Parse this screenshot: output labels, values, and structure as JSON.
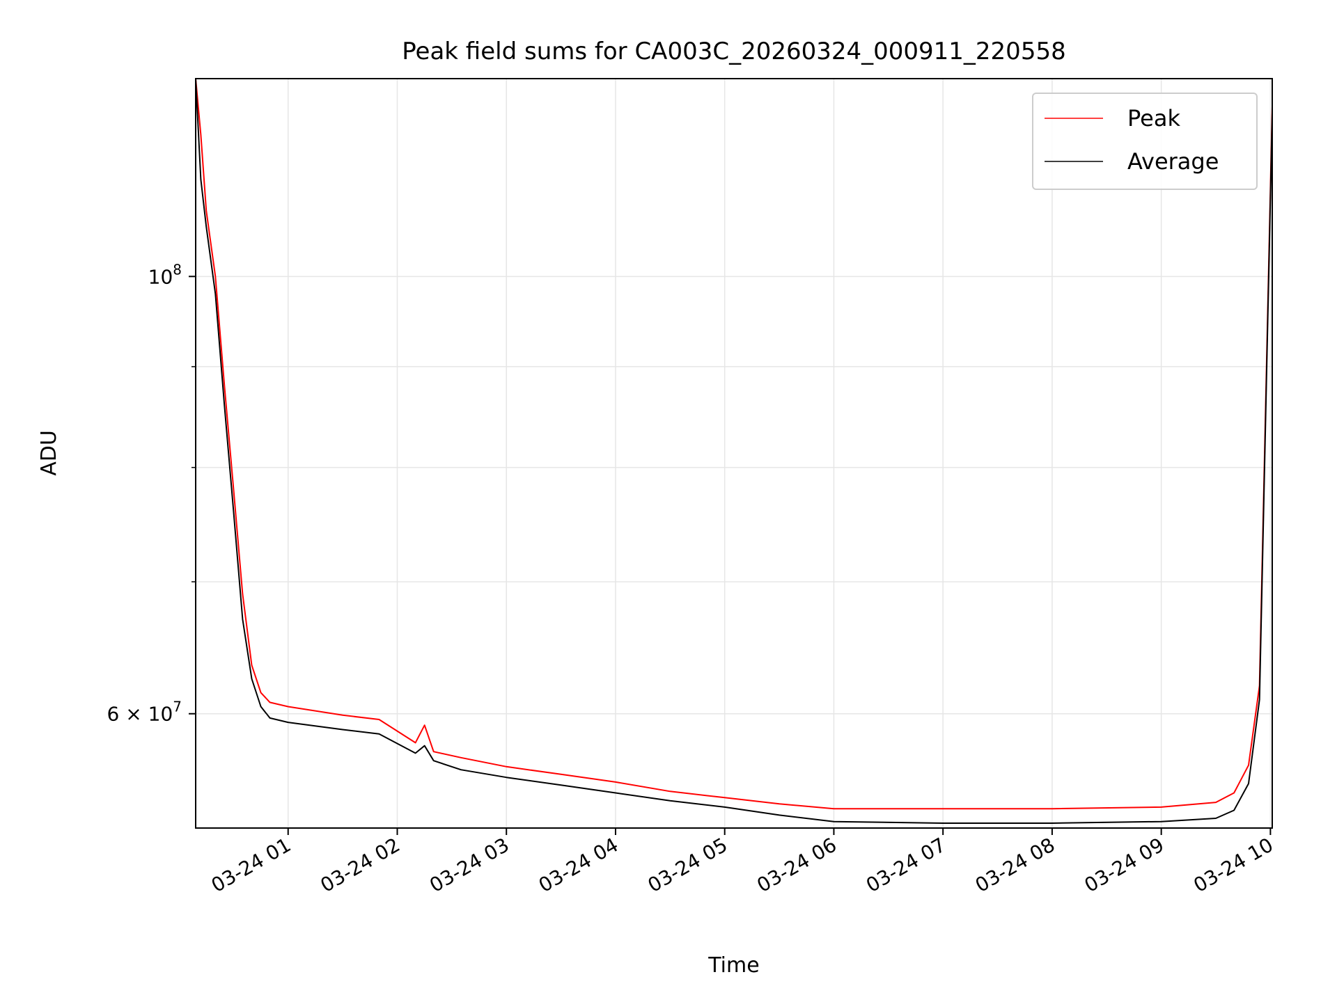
{
  "chart_data": {
    "type": "line",
    "title": "Peak field sums for CA003C_20260324_000911_220558",
    "xlabel": "Time",
    "ylabel": "ADU",
    "yscale": "log",
    "ylim": [
      52500000,
      126000000
    ],
    "xlim": [
      "2026-03-24 00:09:11",
      "2026-03-24 10:01:00"
    ],
    "grid": true,
    "legend_position": "top-right",
    "x_ticks": [
      {
        "t": "2026-03-24 01:00:00",
        "label": "03-24 01"
      },
      {
        "t": "2026-03-24 02:00:00",
        "label": "03-24 02"
      },
      {
        "t": "2026-03-24 03:00:00",
        "label": "03-24 03"
      },
      {
        "t": "2026-03-24 04:00:00",
        "label": "03-24 04"
      },
      {
        "t": "2026-03-24 05:00:00",
        "label": "03-24 05"
      },
      {
        "t": "2026-03-24 06:00:00",
        "label": "03-24 06"
      },
      {
        "t": "2026-03-24 07:00:00",
        "label": "03-24 07"
      },
      {
        "t": "2026-03-24 08:00:00",
        "label": "03-24 08"
      },
      {
        "t": "2026-03-24 09:00:00",
        "label": "03-24 09"
      },
      {
        "t": "2026-03-24 10:00:00",
        "label": "03-24 10"
      }
    ],
    "y_major_ticks": [
      {
        "value": 100000000,
        "base": "10",
        "exp": "8"
      },
      {
        "value": 60000000,
        "mant": "6",
        "base": "10",
        "exp": "7"
      }
    ],
    "y_minor_ticks": [
      70000000,
      80000000,
      90000000
    ],
    "series": [
      {
        "name": "Peak",
        "color": "#ff0000",
        "x": [
          "2026-03-24 00:09:11",
          "2026-03-24 00:12:00",
          "2026-03-24 00:15:00",
          "2026-03-24 00:20:00",
          "2026-03-24 00:25:00",
          "2026-03-24 00:30:00",
          "2026-03-24 00:35:00",
          "2026-03-24 00:40:00",
          "2026-03-24 00:45:00",
          "2026-03-24 00:50:00",
          "2026-03-24 01:00:00",
          "2026-03-24 01:30:00",
          "2026-03-24 01:50:00",
          "2026-03-24 02:10:00",
          "2026-03-24 02:15:00",
          "2026-03-24 02:20:00",
          "2026-03-24 02:35:00",
          "2026-03-24 03:00:00",
          "2026-03-24 03:30:00",
          "2026-03-24 04:00:00",
          "2026-03-24 04:30:00",
          "2026-03-24 05:00:00",
          "2026-03-24 05:30:00",
          "2026-03-24 06:00:00",
          "2026-03-24 07:00:00",
          "2026-03-24 08:00:00",
          "2026-03-24 09:00:00",
          "2026-03-24 09:30:00",
          "2026-03-24 09:40:00",
          "2026-03-24 09:48:00",
          "2026-03-24 09:54:00",
          "2026-03-24 10:01:00"
        ],
        "y": [
          126000000,
          118000000,
          108000000,
          100000000,
          88000000,
          78000000,
          69000000,
          63500000,
          61500000,
          60800000,
          60500000,
          59900000,
          59600000,
          58000000,
          59200000,
          57400000,
          57000000,
          56400000,
          55900000,
          55400000,
          54800000,
          54400000,
          54000000,
          53700000,
          53700000,
          53700000,
          53800000,
          54100000,
          54700000,
          56500000,
          62000000,
          122000000
        ]
      },
      {
        "name": "Average",
        "color": "#000000",
        "x": [
          "2026-03-24 00:09:11",
          "2026-03-24 00:12:00",
          "2026-03-24 00:15:00",
          "2026-03-24 00:20:00",
          "2026-03-24 00:25:00",
          "2026-03-24 00:30:00",
          "2026-03-24 00:35:00",
          "2026-03-24 00:40:00",
          "2026-03-24 00:45:00",
          "2026-03-24 00:50:00",
          "2026-03-24 01:00:00",
          "2026-03-24 01:30:00",
          "2026-03-24 01:50:00",
          "2026-03-24 02:10:00",
          "2026-03-24 02:15:00",
          "2026-03-24 02:20:00",
          "2026-03-24 02:35:00",
          "2026-03-24 03:00:00",
          "2026-03-24 03:30:00",
          "2026-03-24 04:00:00",
          "2026-03-24 04:30:00",
          "2026-03-24 05:00:00",
          "2026-03-24 05:30:00",
          "2026-03-24 06:00:00",
          "2026-03-24 07:00:00",
          "2026-03-24 08:00:00",
          "2026-03-24 09:00:00",
          "2026-03-24 09:30:00",
          "2026-03-24 09:40:00",
          "2026-03-24 09:48:00",
          "2026-03-24 09:54:00",
          "2026-03-24 10:01:00"
        ],
        "y": [
          126000000,
          112000000,
          106000000,
          98000000,
          86000000,
          76000000,
          67000000,
          62500000,
          60500000,
          59700000,
          59400000,
          58900000,
          58600000,
          57300000,
          57800000,
          56800000,
          56200000,
          55700000,
          55200000,
          54700000,
          54200000,
          53800000,
          53300000,
          52900000,
          52800000,
          52800000,
          52900000,
          53100000,
          53600000,
          55300000,
          61000000,
          121000000
        ]
      }
    ]
  }
}
